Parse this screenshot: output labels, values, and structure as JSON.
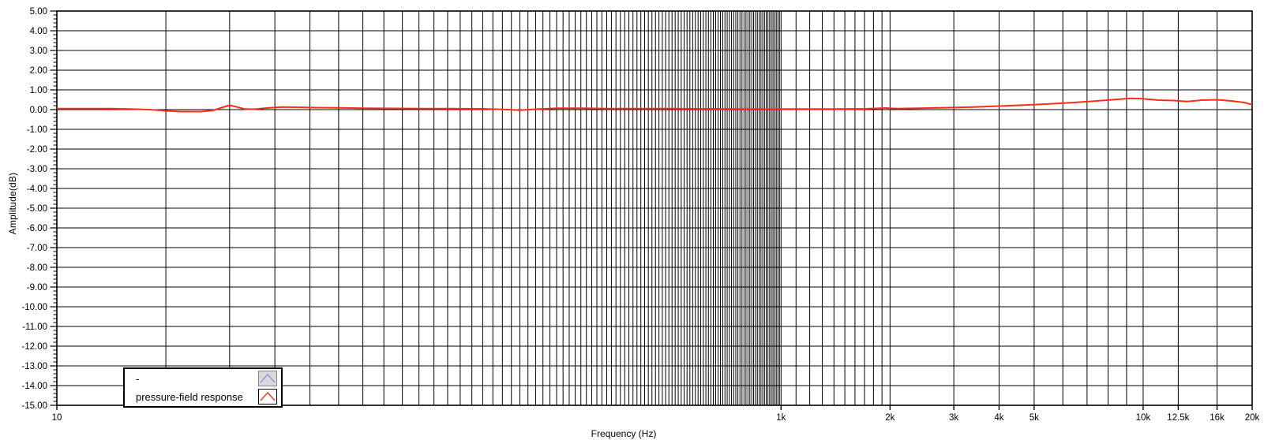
{
  "chart_data": {
    "type": "line",
    "title": "",
    "xlabel": "Frequency (Hz)",
    "ylabel": "Amplitude(dB)",
    "x_scale": "log",
    "xlim": [
      10,
      20000
    ],
    "ylim": [
      -15.0,
      5.0
    ],
    "grid": "on",
    "legend_position": "bottom-left",
    "colors": {
      "grid": "#000000",
      "axis_text": "#000000",
      "curve_red": "#ff2e14",
      "marker_red": "#e8492e",
      "marker_blue": "#939bdb",
      "swatch_blue_bg": "#d9d9d9",
      "swatch_blue_border": "#848484",
      "swatch_red_border": "#000000",
      "background": "#ffffff"
    },
    "y_ticks": [
      {
        "v": 5,
        "label": "5.00"
      },
      {
        "v": 4,
        "label": "4.00"
      },
      {
        "v": 3,
        "label": "3.00"
      },
      {
        "v": 2,
        "label": "2.00"
      },
      {
        "v": 1,
        "label": "1.00"
      },
      {
        "v": 0,
        "label": "0.00"
      },
      {
        "v": -1,
        "label": "-1.00"
      },
      {
        "v": -2,
        "label": "-2.00"
      },
      {
        "v": -3,
        "label": "-3.00"
      },
      {
        "v": -4,
        "label": "-4.00"
      },
      {
        "v": -5,
        "label": "-5.00"
      },
      {
        "v": -6,
        "label": "-6.00"
      },
      {
        "v": -7,
        "label": "-7.00"
      },
      {
        "v": -8,
        "label": "-8.00"
      },
      {
        "v": -9,
        "label": "-9.00"
      },
      {
        "v": -10,
        "label": "-10.00"
      },
      {
        "v": -11,
        "label": "-11.00"
      },
      {
        "v": -12,
        "label": "-12.00"
      },
      {
        "v": -13,
        "label": "-13.00"
      },
      {
        "v": -14,
        "label": "-14.00"
      },
      {
        "v": -15,
        "label": "-15.00"
      }
    ],
    "y_minor_step": 0.2,
    "x_ticks": [
      {
        "f": 10,
        "label": "10"
      },
      {
        "f": 1000,
        "label": "1k"
      },
      {
        "f": 2000,
        "label": "2k"
      },
      {
        "f": 3000,
        "label": "3k"
      },
      {
        "f": 4000,
        "label": "4k"
      },
      {
        "f": 5000,
        "label": "5k"
      },
      {
        "f": 10000,
        "label": "10k"
      },
      {
        "f": 12500,
        "label": "12.5k"
      },
      {
        "f": 16000,
        "label": "16k"
      },
      {
        "f": 20000,
        "label": "20k"
      }
    ],
    "x_gridlines": {
      "segments": [
        [
          10,
          1000,
          10
        ],
        [
          1100,
          2000,
          100
        ],
        [
          3000,
          10000,
          1000
        ]
      ],
      "extra": [
        12500,
        16000,
        20000
      ]
    },
    "series": [
      {
        "name": "-",
        "color": "#939bdb",
        "points": []
      },
      {
        "name": "pressure-field response",
        "color": "#ff2e14",
        "points": [
          [
            10,
            0.05
          ],
          [
            12,
            0.05
          ],
          [
            14,
            0.05
          ],
          [
            16,
            0.03
          ],
          [
            18,
            0.0
          ],
          [
            20,
            -0.06
          ],
          [
            22,
            -0.1
          ],
          [
            25,
            -0.1
          ],
          [
            27,
            -0.04
          ],
          [
            29,
            0.14
          ],
          [
            30,
            0.22
          ],
          [
            31,
            0.16
          ],
          [
            33,
            0.03
          ],
          [
            35,
            0.02
          ],
          [
            38,
            0.08
          ],
          [
            42,
            0.13
          ],
          [
            46,
            0.12
          ],
          [
            52,
            0.1
          ],
          [
            60,
            0.09
          ],
          [
            70,
            0.07
          ],
          [
            85,
            0.06
          ],
          [
            100,
            0.05
          ],
          [
            120,
            0.05
          ],
          [
            150,
            0.04
          ],
          [
            175,
            0.0
          ],
          [
            190,
            -0.03
          ],
          [
            210,
            0.02
          ],
          [
            240,
            0.07
          ],
          [
            280,
            0.07
          ],
          [
            330,
            0.05
          ],
          [
            400,
            0.05
          ],
          [
            500,
            0.05
          ],
          [
            600,
            0.04
          ],
          [
            750,
            0.03
          ],
          [
            900,
            0.03
          ],
          [
            1100,
            0.03
          ],
          [
            1400,
            0.03
          ],
          [
            1700,
            0.04
          ],
          [
            1950,
            0.08
          ],
          [
            2100,
            0.05
          ],
          [
            2400,
            0.07
          ],
          [
            2900,
            0.1
          ],
          [
            3400,
            0.13
          ],
          [
            4000,
            0.18
          ],
          [
            4700,
            0.23
          ],
          [
            5500,
            0.29
          ],
          [
            6300,
            0.35
          ],
          [
            7200,
            0.42
          ],
          [
            8200,
            0.5
          ],
          [
            9200,
            0.57
          ],
          [
            10000,
            0.55
          ],
          [
            11000,
            0.48
          ],
          [
            12200,
            0.46
          ],
          [
            13200,
            0.41
          ],
          [
            14500,
            0.48
          ],
          [
            16000,
            0.5
          ],
          [
            17500,
            0.44
          ],
          [
            19000,
            0.36
          ],
          [
            20000,
            0.25
          ]
        ]
      }
    ]
  },
  "legend": {
    "items": [
      {
        "label": "-"
      },
      {
        "label": "pressure-field response"
      }
    ]
  }
}
